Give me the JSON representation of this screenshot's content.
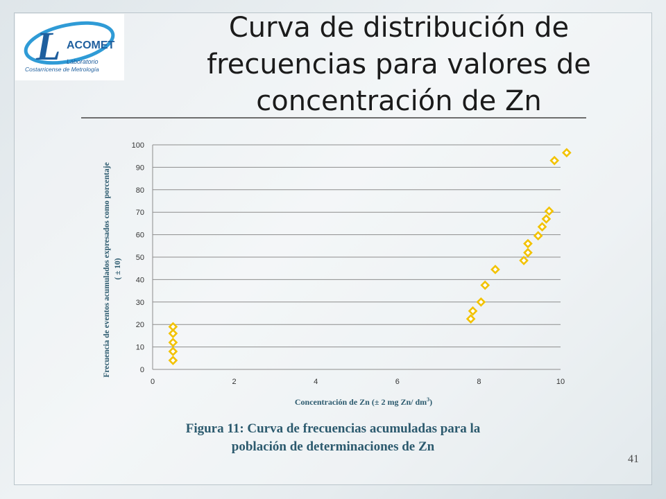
{
  "logo": {
    "letter": "L",
    "name": "ACOMET",
    "line1": "Laboratorio",
    "line2": "Costarricense de Metrología",
    "colors": {
      "blue": "#1f5f9e",
      "ring": "#2f9bd6"
    }
  },
  "title": "Curva de distribución de frecuencias para valores de concentración de Zn",
  "caption_line1": "Figura 11: Curva de frecuencias acumuladas para la",
  "caption_line2": "población de determinaciones de Zn",
  "slide_number": "41",
  "chart_data": {
    "type": "scatter",
    "xlabel_main": "Concentración de Zn (± 2 mg Zn/ dm",
    "xlabel_sup": "3",
    "xlabel_end": ")",
    "ylabel_line1": "Frecuencia de eventos acumulados expresados como porcentaje",
    "ylabel_line2": "( ± 10)",
    "xlim": [
      0,
      10
    ],
    "ylim": [
      0,
      100
    ],
    "xticks": [
      0,
      2,
      4,
      6,
      8,
      10
    ],
    "yticks": [
      0,
      10,
      20,
      30,
      40,
      50,
      60,
      70,
      80,
      90,
      100
    ],
    "grid": "horizontal",
    "marker": "diamond",
    "marker_color": "#f2c200",
    "series": [
      {
        "points": [
          [
            0.5,
            4
          ],
          [
            0.5,
            8
          ],
          [
            0.5,
            12
          ],
          [
            0.5,
            16
          ],
          [
            0.5,
            19
          ],
          [
            7.8,
            22.5
          ],
          [
            7.85,
            26
          ],
          [
            8.05,
            30
          ],
          [
            8.15,
            37.5
          ],
          [
            8.4,
            44.5
          ],
          [
            9.1,
            48.5
          ],
          [
            9.2,
            52
          ],
          [
            9.2,
            56
          ],
          [
            9.45,
            59.5
          ],
          [
            9.55,
            63.5
          ],
          [
            9.65,
            67
          ],
          [
            9.72,
            70.5
          ],
          [
            9.85,
            93
          ],
          [
            10.15,
            96.5
          ]
        ]
      }
    ]
  }
}
